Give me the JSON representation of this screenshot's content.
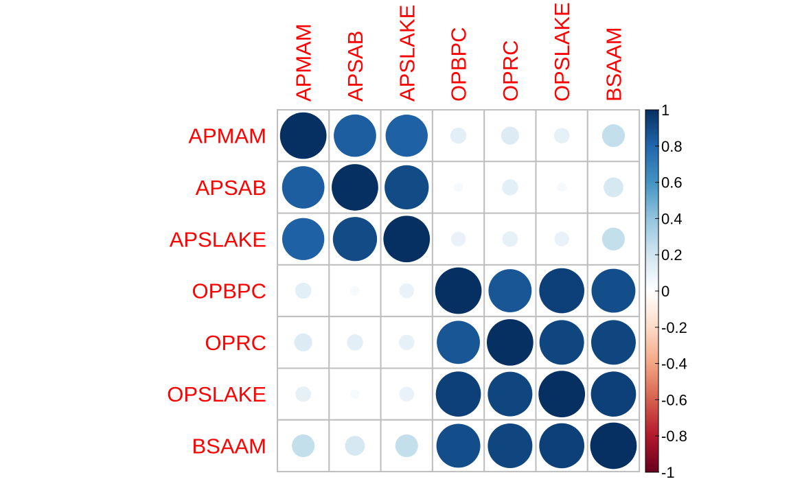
{
  "chart_data": {
    "type": "heatmap",
    "title": "",
    "variables": [
      "APMAM",
      "APSAB",
      "APSLAKE",
      "OPBPC",
      "OPRC",
      "OPSLAKE",
      "BSAAM"
    ],
    "matrix": [
      [
        1.0,
        0.83,
        0.82,
        0.12,
        0.15,
        0.11,
        0.24
      ],
      [
        0.83,
        1.0,
        0.9,
        0.04,
        0.12,
        0.04,
        0.18
      ],
      [
        0.82,
        0.9,
        1.0,
        0.1,
        0.11,
        0.1,
        0.24
      ],
      [
        0.12,
        0.04,
        0.1,
        1.0,
        0.86,
        0.94,
        0.89
      ],
      [
        0.15,
        0.12,
        0.11,
        0.86,
        1.0,
        0.92,
        0.92
      ],
      [
        0.11,
        0.04,
        0.1,
        0.94,
        0.92,
        1.0,
        0.94
      ],
      [
        0.24,
        0.18,
        0.24,
        0.89,
        0.92,
        0.94,
        1.0
      ]
    ],
    "colorbar": {
      "range": [
        -1,
        1
      ],
      "ticks": [
        "1",
        "0.8",
        "0.6",
        "0.4",
        "0.2",
        "0",
        "-0.2",
        "-0.4",
        "-0.6",
        "-0.8",
        "-1"
      ],
      "tick_values": [
        1,
        0.8,
        0.6,
        0.4,
        0.2,
        0,
        -0.2,
        -0.4,
        -0.6,
        -0.8,
        -1
      ],
      "colors": [
        "#67001F",
        "#B2182B",
        "#D6604D",
        "#F4A582",
        "#FDDBC7",
        "#FFFFFF",
        "#D1E5F0",
        "#92C5DE",
        "#4393C3",
        "#2166AC",
        "#053061"
      ]
    },
    "label_color": "#FF0000",
    "grid_color": "#BEBEBE"
  }
}
